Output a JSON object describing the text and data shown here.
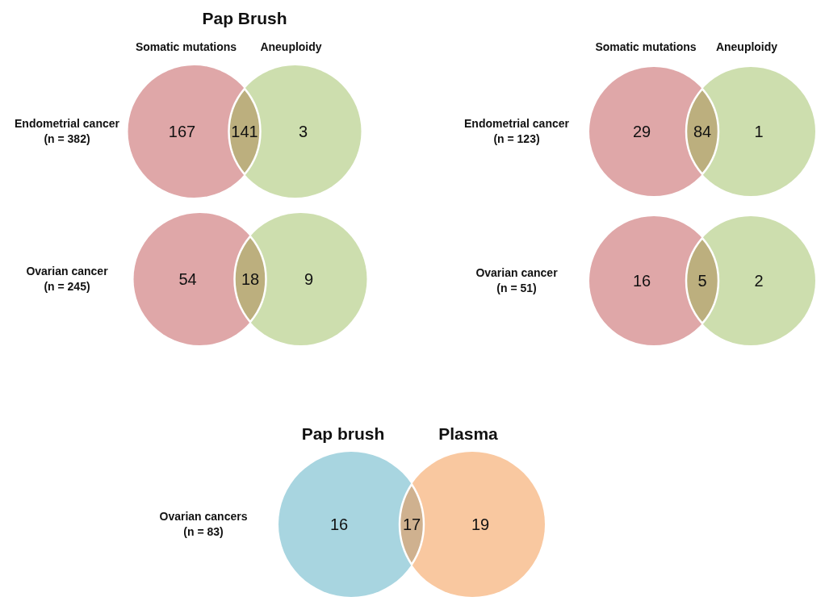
{
  "chart_data": [
    {
      "type": "other",
      "title": "Pap Brush",
      "ylabel": "Endometrial cancer\n(n = 382)",
      "categories": [
        "Somatic mutations",
        null,
        "Aneuploidy"
      ],
      "values": [
        167,
        141,
        3
      ],
      "colors": [
        "#dfa7a8",
        "#bcaf7e",
        "#cddeae"
      ],
      "data_labels": true
    },
    {
      "type": "other",
      "ylabel": "Ovarian cancer\n(n = 245)",
      "categories": [
        null,
        null,
        null
      ],
      "values": [
        54,
        18,
        9
      ],
      "colors": [
        "#dfa7a8",
        "#bcaf7e",
        "#cddeae"
      ],
      "data_labels": true
    },
    {
      "type": "other",
      "ylabel": "Endometrial cancer\n(n = 123)",
      "categories": [
        "Somatic mutations",
        null,
        "Aneuploidy"
      ],
      "values": [
        29,
        84,
        1
      ],
      "colors": [
        "#dfa7a8",
        "#bcaf7e",
        "#cddeae"
      ],
      "data_labels": true
    },
    {
      "type": "other",
      "ylabel": "Ovarian cancer\n(n = 51)",
      "categories": [
        null,
        null,
        null
      ],
      "values": [
        16,
        5,
        2
      ],
      "colors": [
        "#dfa7a8",
        "#bcaf7e",
        "#cddeae"
      ],
      "data_labels": true
    },
    {
      "type": "other",
      "ylabel": "Ovarian cancers\n(n = 83)",
      "categories": [
        "Pap brush",
        null,
        "Plasma"
      ],
      "values": [
        16,
        17,
        19
      ],
      "colors": [
        "#a8d5e0",
        "#cfb18f",
        "#f9c8a0"
      ],
      "data_labels": true
    }
  ]
}
